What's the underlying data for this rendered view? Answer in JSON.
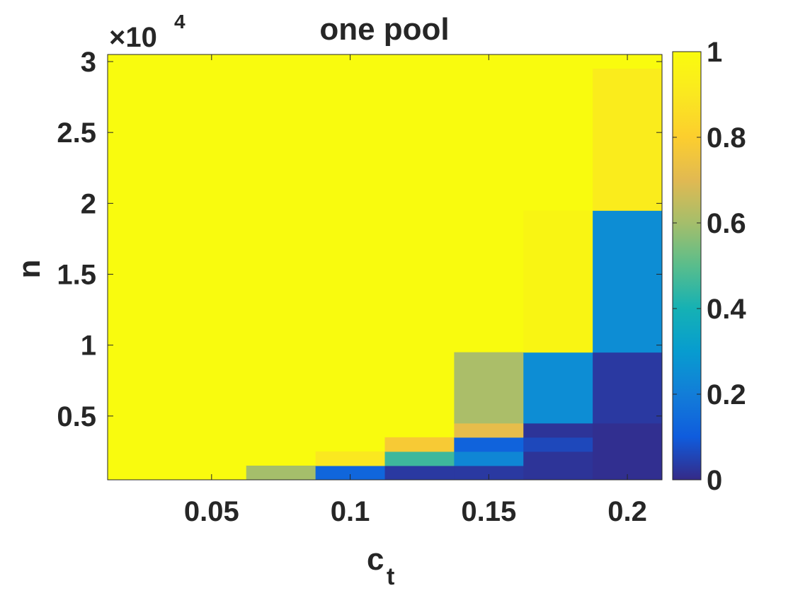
{
  "chart_data": {
    "type": "heatmap",
    "title": "one pool",
    "xlabel": "c",
    "xlabel_subscript": "t",
    "ylabel": "n",
    "y_exponent_label": "×10",
    "y_exponent": "4",
    "xlim": [
      0.0125,
      0.2125
    ],
    "ylim": [
      500,
      30500
    ],
    "x_ticks": [
      0.05,
      0.1,
      0.15,
      0.2
    ],
    "x_tick_labels": [
      "0.05",
      "0.1",
      "0.15",
      "0.2"
    ],
    "y_ticks": [
      5000,
      10000,
      15000,
      20000,
      25000,
      30000
    ],
    "y_tick_labels": [
      "0.5",
      "1",
      "1.5",
      "2",
      "2.5",
      "3"
    ],
    "colorbar": {
      "colormap": "parula",
      "clim": [
        0,
        1
      ],
      "ticks": [
        0,
        0.2,
        0.4,
        0.6,
        0.8,
        1
      ],
      "tick_labels": [
        "0",
        "0.2",
        "0.4",
        "0.6",
        "0.8",
        "1"
      ]
    },
    "x_columns": [
      0.025,
      0.05,
      0.075,
      0.1,
      0.125,
      0.15,
      0.175,
      0.2
    ],
    "cells": [
      {
        "x": [
          0.0625,
          0.0875
        ],
        "y": [
          500,
          1500
        ],
        "value": 0.6
      },
      {
        "x": [
          0.0875,
          0.1125
        ],
        "y": [
          500,
          1500
        ],
        "value": 0.13
      },
      {
        "x": [
          0.0875,
          0.1125
        ],
        "y": [
          1500,
          2500
        ],
        "value": 0.9
      },
      {
        "x": [
          0.1125,
          0.1375
        ],
        "y": [
          500,
          1500
        ],
        "value": 0.03
      },
      {
        "x": [
          0.1125,
          0.1375
        ],
        "y": [
          1500,
          2500
        ],
        "value": 0.46
      },
      {
        "x": [
          0.1125,
          0.1375
        ],
        "y": [
          2500,
          3500
        ],
        "value": 0.78
      },
      {
        "x": [
          0.1375,
          0.1625
        ],
        "y": [
          500,
          1500
        ],
        "value": 0.03
      },
      {
        "x": [
          0.1375,
          0.1625
        ],
        "y": [
          1500,
          2500
        ],
        "value": 0.23
      },
      {
        "x": [
          0.1375,
          0.1625
        ],
        "y": [
          2500,
          3500
        ],
        "value": 0.12
      },
      {
        "x": [
          0.1375,
          0.1625
        ],
        "y": [
          3500,
          4500
        ],
        "value": 0.72
      },
      {
        "x": [
          0.1375,
          0.1625
        ],
        "y": [
          4500,
          9500
        ],
        "value": 0.61
      },
      {
        "x": [
          0.1625,
          0.1875
        ],
        "y": [
          500,
          2500
        ],
        "value": 0.02
      },
      {
        "x": [
          0.1625,
          0.1875
        ],
        "y": [
          2500,
          3500
        ],
        "value": 0.06
      },
      {
        "x": [
          0.1625,
          0.1875
        ],
        "y": [
          3500,
          4500
        ],
        "value": 0.02
      },
      {
        "x": [
          0.1625,
          0.1875
        ],
        "y": [
          4500,
          9500
        ],
        "value": 0.25
      },
      {
        "x": [
          0.1625,
          0.1875
        ],
        "y": [
          9500,
          19500
        ],
        "value": 0.97
      },
      {
        "x": [
          0.1875,
          0.2125
        ],
        "y": [
          500,
          4500
        ],
        "value": 0.01
      },
      {
        "x": [
          0.1875,
          0.2125
        ],
        "y": [
          4500,
          9500
        ],
        "value": 0.03
      },
      {
        "x": [
          0.1875,
          0.2125
        ],
        "y": [
          9500,
          19500
        ],
        "value": 0.25
      },
      {
        "x": [
          0.1875,
          0.2125
        ],
        "y": [
          19500,
          29500
        ],
        "value": 0.92
      }
    ]
  }
}
